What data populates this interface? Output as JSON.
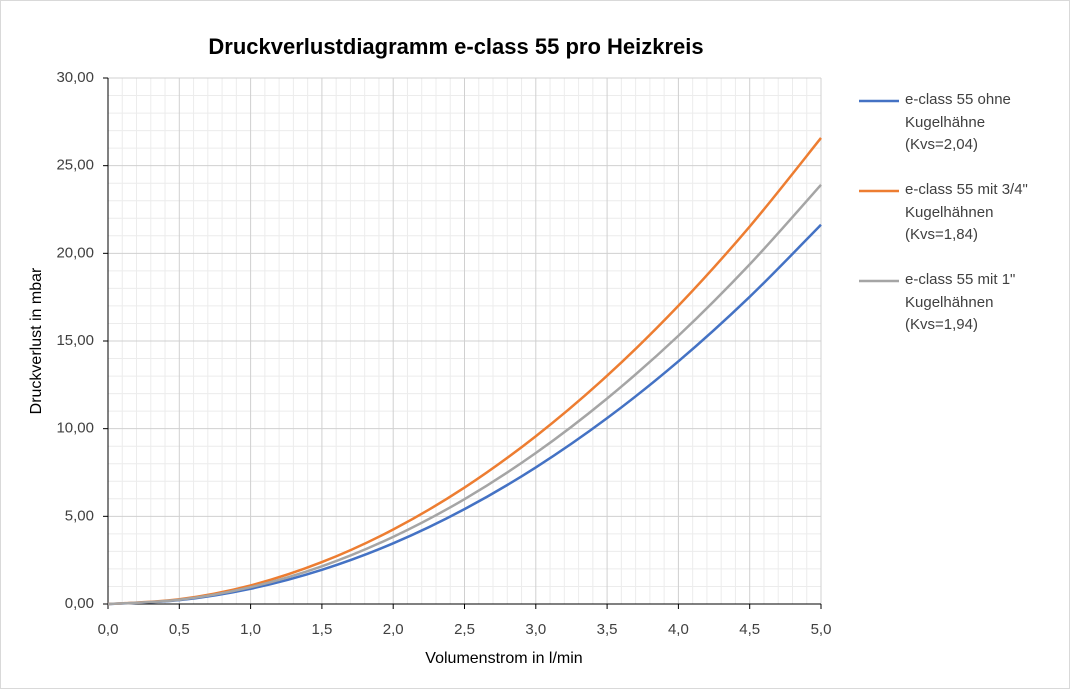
{
  "chart_data": {
    "type": "line",
    "title": "Druckverlustdiagramm e-class 55 pro Heizkreis",
    "x_label": "Volumenstrom in l/min",
    "y_label": "Druckverlust in mbar",
    "x": [
      0,
      0.5,
      1,
      1.5,
      2,
      2.5,
      3,
      3.5,
      4,
      4.5,
      5
    ],
    "series": [
      {
        "name": "e-class 55 ohne Kugelhähne (Kvs=2,04)",
        "color": "#4472c4",
        "values": [
          0,
          0.22,
          0.87,
          1.95,
          3.46,
          5.41,
          7.79,
          10.6,
          13.84,
          17.52,
          21.63
        ]
      },
      {
        "name": "e-class 55 mit 3/4\" Kugelhähnen (Kvs=1,84)",
        "color": "#ed7d31",
        "values": [
          0,
          0.27,
          1.06,
          2.39,
          4.25,
          6.64,
          9.57,
          13.02,
          17.01,
          21.53,
          26.58
        ]
      },
      {
        "name": "e-class 55 mit 1\" Kugelhähnen (Kvs=1,94)",
        "color": "#a5a5a5",
        "values": [
          0,
          0.24,
          0.96,
          2.15,
          3.83,
          5.98,
          8.61,
          11.72,
          15.3,
          19.37,
          23.91
        ]
      }
    ],
    "xlim": [
      0,
      5
    ],
    "xticks": [
      {
        "value": 0,
        "label": "0,0"
      },
      {
        "value": 0.5,
        "label": "0,5"
      },
      {
        "value": 1,
        "label": "1,0"
      },
      {
        "value": 1.5,
        "label": "1,5"
      },
      {
        "value": 2,
        "label": "2,0"
      },
      {
        "value": 2.5,
        "label": "2,5"
      },
      {
        "value": 3,
        "label": "3,0"
      },
      {
        "value": 3.5,
        "label": "3,5"
      },
      {
        "value": 4,
        "label": "4,0"
      },
      {
        "value": 4.5,
        "label": "4,5"
      },
      {
        "value": 5,
        "label": "5,0"
      }
    ],
    "ylim": [
      0,
      30
    ],
    "yticks": [
      {
        "value": 0,
        "label": "0,00"
      },
      {
        "value": 5,
        "label": "5,00"
      },
      {
        "value": 10,
        "label": "10,00"
      },
      {
        "value": 15,
        "label": "15,00"
      },
      {
        "value": 20,
        "label": "20,00"
      },
      {
        "value": 25,
        "label": "25,00"
      },
      {
        "value": 30,
        "label": "30,00"
      }
    ],
    "grid": true,
    "minor_grid": true,
    "legend": "right"
  }
}
